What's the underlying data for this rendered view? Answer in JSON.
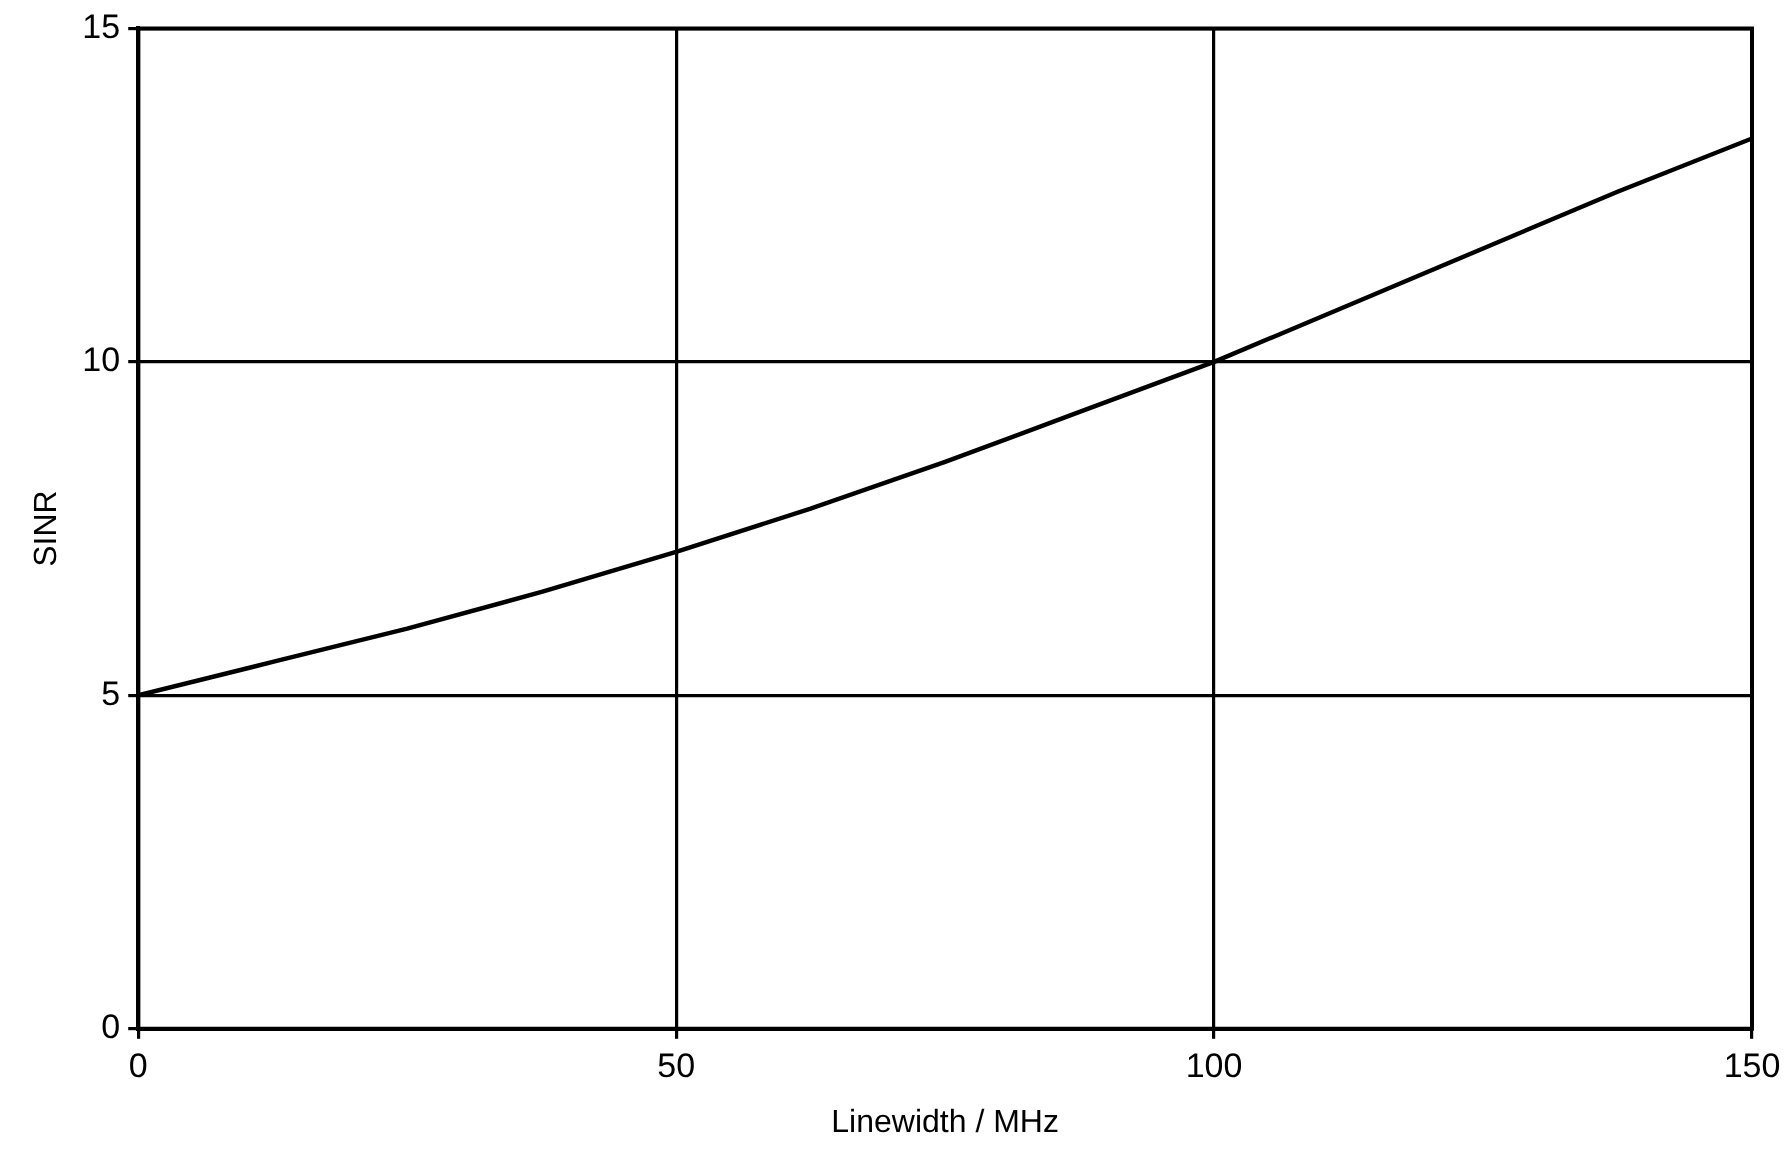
{
  "chart_data": {
    "type": "line",
    "xlabel": "Linewidth / MHz",
    "ylabel": "SINR",
    "x": [
      0,
      12.5,
      25,
      37.5,
      50,
      62.5,
      75,
      87.5,
      100,
      112.5,
      125,
      137.5,
      150
    ],
    "series": [
      {
        "color": "#000000",
        "values": [
          5,
          5.5,
          6.0,
          6.55,
          7.15,
          7.8,
          8.5,
          9.25,
          10.0,
          10.85,
          11.7,
          12.55,
          13.35
        ]
      }
    ],
    "xlim": [
      0,
      150
    ],
    "xticks": [
      0,
      50,
      100,
      150
    ],
    "ylim": [
      0,
      15
    ],
    "yticks": [
      0,
      5,
      10,
      15
    ],
    "grid": true,
    "legend": false,
    "marker": "none",
    "line_style": "solid"
  }
}
